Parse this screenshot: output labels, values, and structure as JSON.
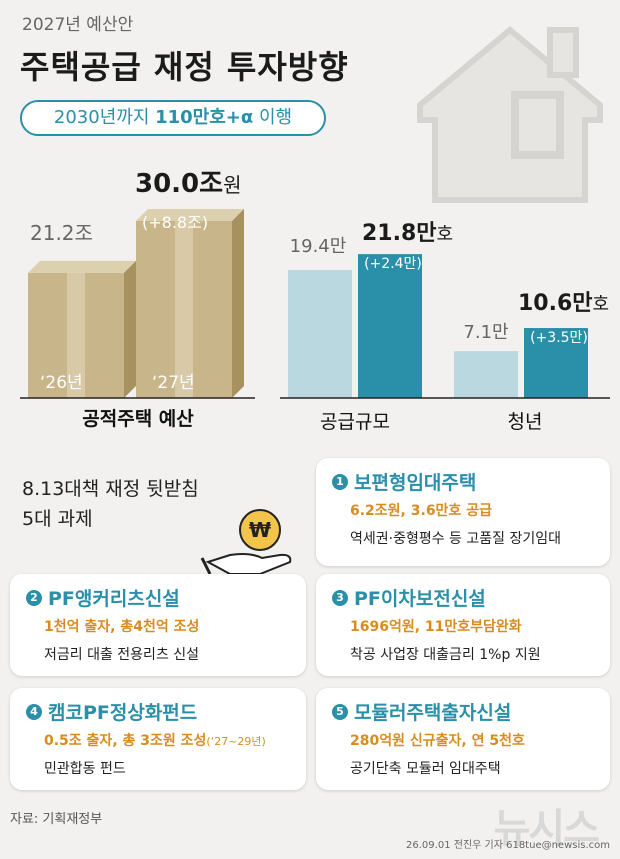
{
  "header": {
    "year_label": "2027년 예산안",
    "title": "주택공급 재정 투자방향",
    "goal_prefix": "2030년까지 ",
    "goal_highlight": "110만호+α",
    "goal_suffix": " 이행"
  },
  "colors": {
    "accent": "#2a8fa8",
    "light_blue": "#b9d8df",
    "box": "#c9b58a",
    "orange": "#d98c1e"
  },
  "chart_data": [
    {
      "type": "bar",
      "xlabel": "공적주택 예산",
      "categories": [
        "‘26년",
        "‘27년"
      ],
      "values": [
        21.2,
        30.0
      ],
      "value_labels": [
        "21.2조",
        "30.0조"
      ],
      "highlight_unit": "원",
      "change_label": "(+8.8조)"
    },
    {
      "type": "bar",
      "categories": [
        "공급규모",
        "청년"
      ],
      "series": [
        {
          "values": [
            19.4,
            7.1
          ],
          "value_labels": [
            "19.4만",
            "7.1만"
          ]
        },
        {
          "values": [
            21.8,
            10.6
          ],
          "value_labels": [
            "21.8만",
            "10.6만"
          ],
          "unit_suffix": "호",
          "change_labels": [
            "(+2.4만)",
            "(+3.5만)"
          ]
        }
      ]
    }
  ],
  "tasks": {
    "title_line1": "8.13대책 재정 뒷받침",
    "title_line2": "5대 과제",
    "coin_symbol": "₩",
    "items": [
      {
        "num": "1",
        "title": "보편형임대주택",
        "sub": "6.2조원, 3.6만호 공급",
        "desc": "역세권·중형평수 등 고품질 장기임대"
      },
      {
        "num": "2",
        "title": "PF앵커리츠신설",
        "sub": "1천억 출자, 총4천억 조성",
        "desc": "저금리 대출 전용리츠 신설"
      },
      {
        "num": "3",
        "title": "PF이차보전신설",
        "sub": "1696억원, 11만호부담완화",
        "desc": "착공 사업장 대출금리 1%p 지원"
      },
      {
        "num": "4",
        "title": "캠코PF정상화펀드",
        "sub": "0.5조 출자, 총 3조원 조성",
        "sub_note": "(‘27~29년)",
        "desc": "민관합동 펀드"
      },
      {
        "num": "5",
        "title": "모듈러주택출자신설",
        "sub": "280억원 신규출자, 연 5천호",
        "desc": "공기단축 모듈러 임대주택"
      }
    ]
  },
  "footer": {
    "source": "자료: 기획재정부",
    "credit": "26.09.01 전진우 기자 618tue@newsis.com",
    "watermark": "뉴시스"
  }
}
